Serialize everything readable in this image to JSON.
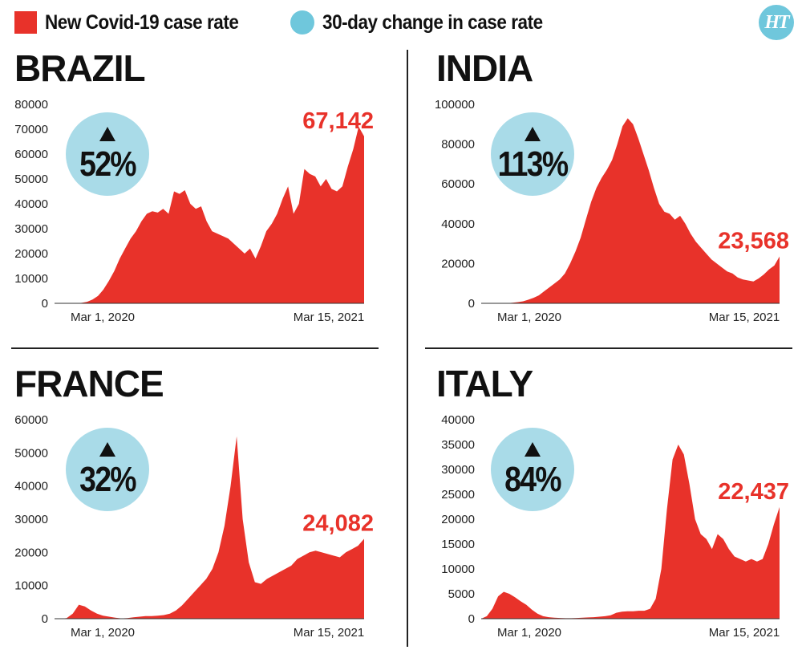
{
  "legend": {
    "case_rate_label": "New Covid-19 case rate",
    "change_label": "30-day change in case rate",
    "colors": {
      "case_rate": "#e8322a",
      "change": "#6fc7dc"
    }
  },
  "logo": {
    "text": "HT"
  },
  "chart_data": [
    {
      "type": "area",
      "title": "BRAZIL",
      "x_labels": [
        "Mar 1, 2020",
        "Mar 15, 2021"
      ],
      "ylim": [
        0,
        80000
      ],
      "yticks": [
        "80000",
        "70000",
        "60000",
        "50000",
        "40000",
        "30000",
        "20000",
        "10000",
        "0"
      ],
      "change_pct": "52%",
      "last_value_label": "67,142",
      "values": [
        0,
        0,
        0,
        0,
        0,
        200,
        600,
        1500,
        3000,
        5500,
        9000,
        13000,
        18000,
        22000,
        26000,
        29000,
        33000,
        36000,
        37000,
        36500,
        38000,
        36000,
        45000,
        44000,
        45500,
        40000,
        38000,
        39000,
        33000,
        29000,
        28000,
        27000,
        26000,
        24000,
        22000,
        20000,
        22000,
        18000,
        23000,
        29000,
        32000,
        36000,
        42000,
        47000,
        36000,
        40000,
        54000,
        52000,
        51000,
        47000,
        50000,
        46000,
        45000,
        47000,
        55000,
        62000,
        71000,
        67142
      ]
    },
    {
      "type": "area",
      "title": "INDIA",
      "x_labels": [
        "Mar 1, 2020",
        "Mar 15, 2021"
      ],
      "ylim": [
        0,
        100000
      ],
      "yticks": [
        "100000",
        "80000",
        "60000",
        "40000",
        "20000",
        "0"
      ],
      "change_pct": "113%",
      "last_value_label": "23,568",
      "values": [
        0,
        0,
        0,
        0,
        0,
        100,
        300,
        600,
        1000,
        1800,
        2800,
        4000,
        6000,
        8000,
        10000,
        12000,
        15000,
        20000,
        26000,
        33000,
        42000,
        51000,
        58000,
        63000,
        67000,
        72000,
        80000,
        89000,
        93000,
        90000,
        83000,
        75000,
        67000,
        58000,
        50000,
        46000,
        45000,
        42000,
        44000,
        40000,
        35000,
        31000,
        28000,
        25000,
        22000,
        20000,
        18000,
        16000,
        15000,
        13000,
        12000,
        11500,
        11000,
        12500,
        14500,
        17000,
        19000,
        23568
      ]
    },
    {
      "type": "area",
      "title": "FRANCE",
      "x_labels": [
        "Mar 1, 2020",
        "Mar 15, 2021"
      ],
      "ylim": [
        0,
        60000
      ],
      "yticks": [
        "60000",
        "50000",
        "40000",
        "30000",
        "20000",
        "10000",
        "0"
      ],
      "change_pct": "32%",
      "last_value_label": "24,082",
      "values": [
        0,
        0,
        200,
        1500,
        4200,
        3700,
        2500,
        1500,
        900,
        600,
        300,
        100,
        200,
        400,
        600,
        800,
        800,
        900,
        1100,
        1500,
        2500,
        4000,
        6000,
        8000,
        10000,
        12000,
        15000,
        20000,
        28000,
        40000,
        55000,
        30000,
        17000,
        11000,
        10500,
        12000,
        13000,
        14000,
        15000,
        16000,
        18000,
        19000,
        20000,
        20500,
        20000,
        19500,
        19000,
        18500,
        20000,
        21000,
        22000,
        24082
      ]
    },
    {
      "type": "area",
      "title": "ITALY",
      "x_labels": [
        "Mar 1, 2020",
        "Mar 15, 2021"
      ],
      "ylim": [
        0,
        40000
      ],
      "yticks": [
        "40000",
        "35000",
        "30000",
        "25000",
        "20000",
        "15000",
        "10000",
        "5000",
        "0"
      ],
      "change_pct": "84%",
      "last_value_label": "22,437",
      "values": [
        0,
        500,
        2000,
        4500,
        5400,
        5000,
        4300,
        3500,
        2800,
        1800,
        1000,
        500,
        300,
        200,
        150,
        100,
        100,
        150,
        200,
        250,
        300,
        400,
        500,
        700,
        1200,
        1400,
        1500,
        1500,
        1600,
        1600,
        2000,
        4000,
        10000,
        22000,
        32000,
        35000,
        33000,
        27000,
        20000,
        17000,
        16000,
        14000,
        17000,
        16000,
        14000,
        12500,
        12000,
        11500,
        12000,
        11500,
        12000,
        15000,
        19000,
        22437
      ]
    }
  ]
}
